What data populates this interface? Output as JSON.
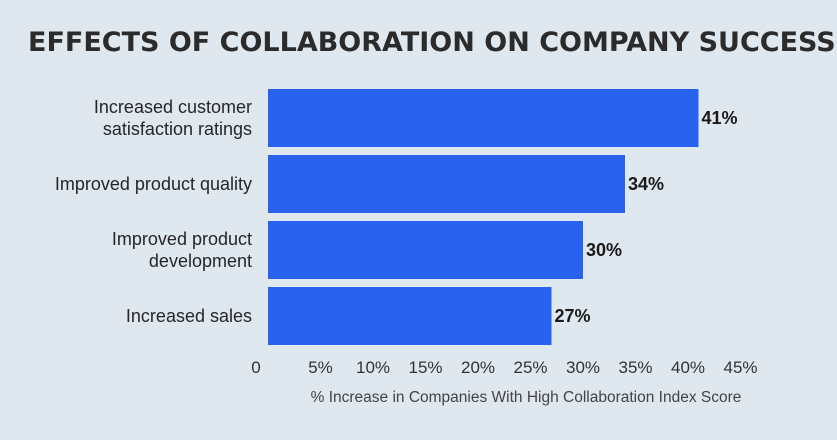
{
  "chart_data": {
    "type": "bar",
    "orientation": "horizontal",
    "title": "EFFECTS OF COLLABORATION ON COMPANY SUCCESS",
    "categories": [
      [
        "Increased customer",
        "satisfaction ratings"
      ],
      [
        "Improved product quality"
      ],
      [
        "Improved product",
        "development"
      ],
      [
        "Increased sales"
      ]
    ],
    "values": [
      41,
      34,
      30,
      27
    ],
    "value_labels": [
      "41%",
      "34%",
      "30%",
      "27%"
    ],
    "xlabel": "% Increase in Companies With High Collaboration Index Score",
    "ticks": [
      0,
      5,
      10,
      15,
      20,
      25,
      30,
      35,
      40,
      45
    ],
    "tick_labels": [
      "0",
      "5%",
      "10%",
      "15%",
      "20%",
      "25%",
      "30%",
      "35%",
      "40%",
      "45%"
    ],
    "xlim": [
      0,
      45
    ],
    "grid": false,
    "bar_color": "#2962ee",
    "background_color": "#dfe7ef"
  }
}
